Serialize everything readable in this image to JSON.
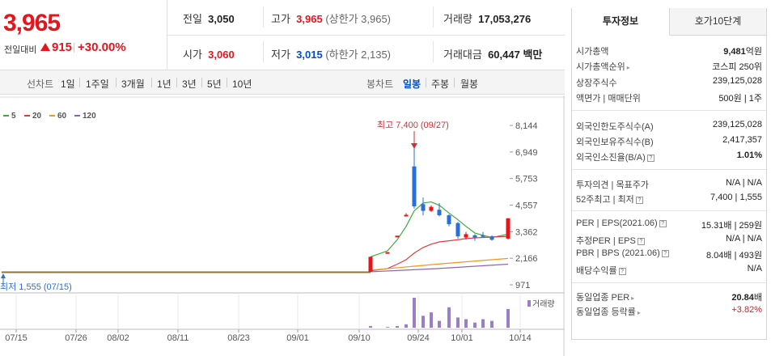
{
  "quote": {
    "price": "3,965",
    "change_label": "전일대비",
    "change_value": "915",
    "change_pct": "+30.00%"
  },
  "stats": {
    "prev_close_label": "전일",
    "prev_close": "3,050",
    "high_label": "고가",
    "high": "3,965",
    "upper_limit": "(상한가 3,965)",
    "volume_label": "거래량",
    "volume": "17,053,276",
    "open_label": "시가",
    "open": "3,060",
    "low_label": "저가",
    "low": "3,015",
    "lower_limit": "(하한가 2,135)",
    "amount_label": "거래대금",
    "amount": "60,447 백만"
  },
  "period_tabs": {
    "line_chart": "선차트",
    "items": [
      "1일",
      "1주일",
      "3개월",
      "1년",
      "3년",
      "5년",
      "10년"
    ]
  },
  "candle_tabs": {
    "candle_chart": "봉차트",
    "items": [
      "일봉",
      "주봉",
      "월봉"
    ],
    "active": "일봉"
  },
  "legend": [
    {
      "label": "5",
      "color": "#3caa3c"
    },
    {
      "label": "20",
      "color": "#e03c3c"
    },
    {
      "label": "60",
      "color": "#f0961e"
    },
    {
      "label": "120",
      "color": "#8c64b4"
    }
  ],
  "chart_data": {
    "type": "candlestick",
    "y_ticks": [
      "8,144",
      "6,949",
      "5,753",
      "4,557",
      "3,362",
      "2,166",
      "971"
    ],
    "x_ticks": [
      "07/15",
      "07/26",
      "08/02",
      "08/11",
      "08/23",
      "09/01",
      "09/10",
      "09/24",
      "10/01",
      "10/14"
    ],
    "ylim": [
      971,
      8144
    ],
    "high_annotation": "최고 7,400 (09/27)",
    "low_annotation": "최저 1,555 (07/15)",
    "volume_label": "거래량",
    "baseline": 1555,
    "candles": [
      {
        "o": 1560,
        "c": 2230,
        "h": 2230,
        "l": 1560,
        "up": true
      },
      {
        "o": 2420,
        "c": 2440,
        "h": 2440,
        "l": 2400,
        "up": true
      },
      {
        "o": 3160,
        "c": 3180,
        "h": 3180,
        "l": 3150,
        "up": true
      },
      {
        "o": 4080,
        "c": 4120,
        "h": 4200,
        "l": 4050,
        "up": true
      },
      {
        "o": 6300,
        "c": 4500,
        "h": 7400,
        "l": 4400,
        "up": false
      },
      {
        "o": 4600,
        "c": 4300,
        "h": 4900,
        "l": 4100,
        "up": false
      },
      {
        "o": 4300,
        "c": 4480,
        "h": 4550,
        "l": 4250,
        "up": true
      },
      {
        "o": 4350,
        "c": 4100,
        "h": 4650,
        "l": 4050,
        "up": false
      },
      {
        "o": 4100,
        "c": 3700,
        "h": 4150,
        "l": 3600,
        "up": false
      },
      {
        "o": 3750,
        "c": 3150,
        "h": 3800,
        "l": 3050,
        "up": false
      },
      {
        "o": 3100,
        "c": 3250,
        "h": 3350,
        "l": 3000,
        "up": true
      },
      {
        "o": 3200,
        "c": 3100,
        "h": 3250,
        "l": 2950,
        "up": false
      },
      {
        "o": 3200,
        "c": 3150,
        "h": 3350,
        "l": 3100,
        "up": false
      },
      {
        "o": 3150,
        "c": 3000,
        "h": 3200,
        "l": 2950,
        "up": false
      },
      {
        "o": 3050,
        "c": 3965,
        "h": 3965,
        "l": 3015,
        "up": true
      }
    ],
    "ma5": [
      2230,
      2500,
      3000,
      3600,
      4300,
      4650,
      4700,
      4550,
      4200,
      3900,
      3600,
      3300,
      3200,
      3100,
      3250
    ],
    "ma20": [
      1600,
      1700,
      1900,
      2100,
      2400,
      2650,
      2800,
      2900,
      2950,
      3000,
      3050,
      3080,
      3100,
      3120,
      3150
    ],
    "volumes": [
      0.05,
      0.02,
      0.05,
      0.1,
      0.88,
      0.35,
      0.45,
      0.2,
      0.6,
      0.3,
      0.25,
      0.15,
      0.25,
      0.2,
      0.55
    ]
  },
  "right": {
    "tab_info": "투자정보",
    "tab_orderbook": "호가10단계",
    "market_cap_label": "시가총액",
    "market_cap_num": "9,481",
    "market_cap_unit": "억원",
    "rank_label": "시가총액순위",
    "rank": "코스피 250위",
    "shares_label": "상장주식수",
    "shares": "239,125,028",
    "face_label": "액면가 | 매매단위",
    "face": "500원 | 1주",
    "foreign_limit_label": "외국인한도주식수(A)",
    "foreign_limit": "239,125,028",
    "foreign_hold_label": "외국인보유주식수(B)",
    "foreign_hold": "2,417,357",
    "foreign_ratio_label": "외국인소진율(B/A)",
    "foreign_ratio": "1.01%",
    "opinion_label": "투자의견 | 목표주가",
    "opinion": "N/A | N/A",
    "w52_label": "52주최고 | 최저",
    "w52": "7,400 | 1,555",
    "per_label": "PER | EPS(2021.06)",
    "per_num": "15.31",
    "per_mid": "배 | ",
    "eps_num": "259",
    "eps_unit": "원",
    "est_per_label": "추정PER | EPS",
    "est_per": "N/A | N/A",
    "pbr_label": "PBR | BPS (2021.06)",
    "pbr_num": "8.04",
    "pbr_mid": "배 | ",
    "bps_num": "493",
    "bps_unit": "원",
    "div_label": "배당수익률",
    "div": "N/A",
    "ind_per_label": "동일업종 PER",
    "ind_per_num": "20.84",
    "ind_per_unit": "배",
    "ind_chg_label": "동일업종 등락률",
    "ind_chg": "+3.82%"
  }
}
